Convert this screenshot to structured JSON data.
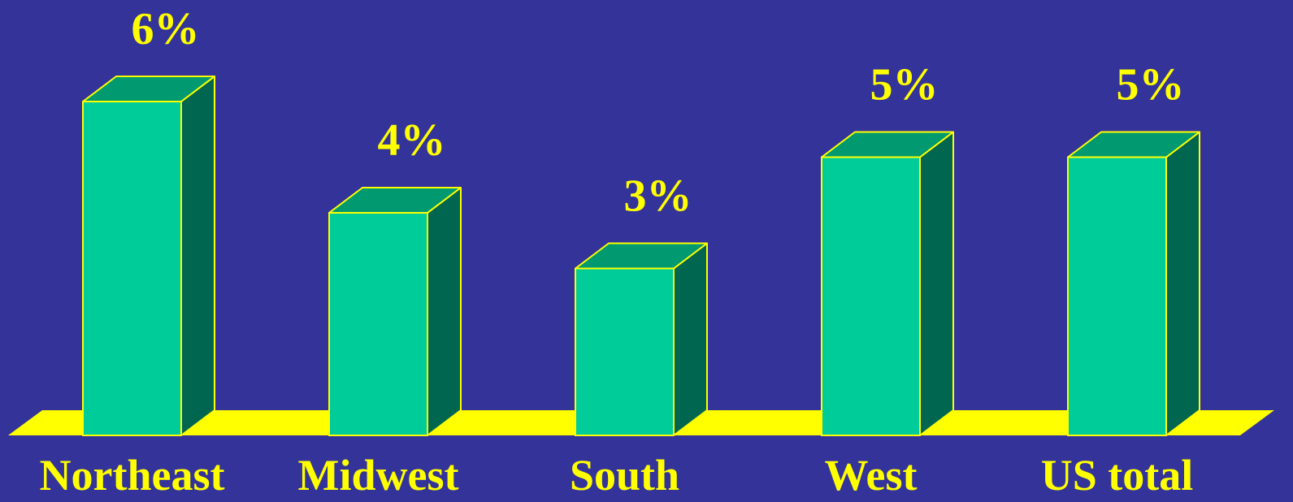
{
  "colors": {
    "background": "#333399",
    "bar_front": "#00CC99",
    "bar_top": "#009970",
    "bar_side": "#006650",
    "outline": "#FFFF00",
    "floor": "#FFFF00",
    "text": "#FFFF00"
  },
  "chart_data": {
    "type": "bar",
    "title": "",
    "xlabel": "",
    "ylabel": "",
    "ylim": [
      0,
      7
    ],
    "grid": false,
    "style": "3d-bars",
    "categories": [
      "Northeast",
      "Midwest",
      "South",
      "West",
      "US total"
    ],
    "values": [
      6,
      4,
      3,
      5,
      5
    ],
    "value_labels": [
      "6%",
      "4%",
      "3%",
      "5%",
      "5%"
    ]
  }
}
